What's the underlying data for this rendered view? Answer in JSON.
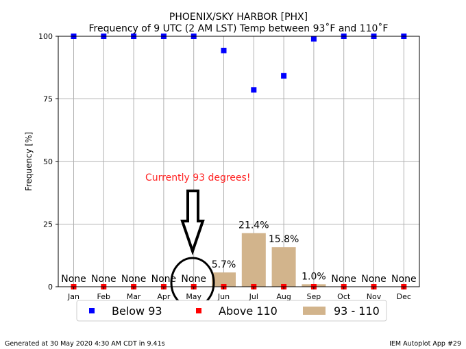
{
  "chart_data": {
    "type": "bar",
    "title": "PHOENIX/SKY HARBOR [PHX]",
    "subtitle": "Frequency of 9 UTC (2 AM LST) Temp between 93˚F and 110˚F",
    "xlabel": "",
    "ylabel": "Frequency [%]",
    "ylim": [
      0,
      100
    ],
    "yticks": [
      "0",
      "25",
      "50",
      "75",
      "100"
    ],
    "grid": true,
    "legend_placement": "bottom",
    "categories": [
      "Jan",
      "Feb",
      "Mar",
      "Apr",
      "May",
      "Jun",
      "Jul",
      "Aug",
      "Sep",
      "Oct",
      "Nov",
      "Dec"
    ],
    "series": [
      {
        "name": "Below 93",
        "kind": "scatter",
        "marker": "square",
        "color": "#0000ff",
        "values": [
          100,
          100,
          100,
          100,
          100,
          94.3,
          78.6,
          84.2,
          99.0,
          100,
          100,
          100
        ]
      },
      {
        "name": "Above 110",
        "kind": "scatter",
        "marker": "square",
        "color": "#ff0000",
        "values": [
          0,
          0,
          0,
          0,
          0,
          0,
          0,
          0,
          0,
          0,
          0,
          0
        ]
      },
      {
        "name": "93 - 110",
        "kind": "bar",
        "color": "#d2b48c",
        "values": [
          0,
          0,
          0,
          0,
          0,
          5.7,
          21.4,
          15.8,
          1.0,
          0,
          0,
          0
        ]
      }
    ],
    "bar_labels": [
      "None",
      "None",
      "None",
      "None",
      "None",
      "5.7%",
      "21.4%",
      "15.8%",
      "1.0%",
      "None",
      "None",
      "None"
    ],
    "annotation": {
      "text": "Currently 93 degrees!",
      "color": "#ff2222",
      "target_category": "May"
    }
  },
  "footer": {
    "left": "Generated at 30 May 2020 4:30 AM CDT in 9.41s",
    "right": "IEM Autoplot App #29"
  }
}
